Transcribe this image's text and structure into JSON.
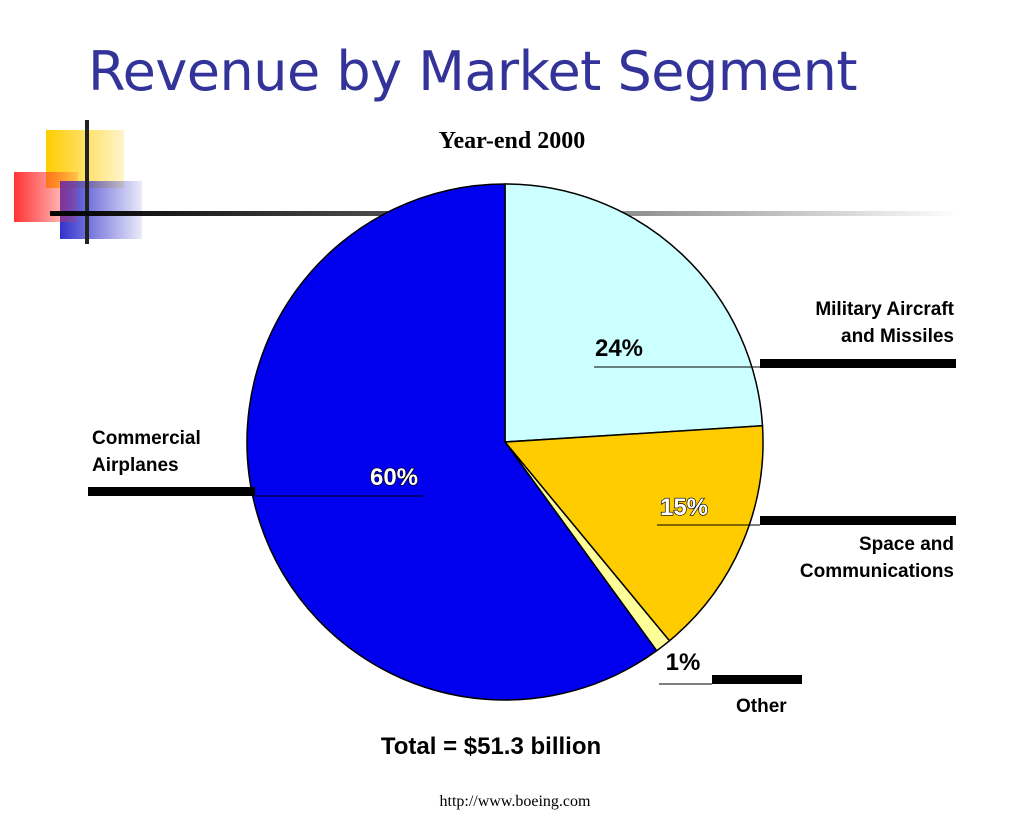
{
  "slide": {
    "title": "Revenue by Market Segment",
    "footer_url": "http://www.boeing.com"
  },
  "colors": {
    "title": "#333399",
    "commercial": "#0000ee",
    "military": "#ccffff",
    "space": "#ffcc00",
    "other": "#ffff99"
  },
  "chart_data": {
    "type": "pie",
    "title": "Year-end 2000",
    "total_label": "Total = $51.3 billion",
    "start_angle_deg": 0,
    "direction": "clockwise",
    "slices": [
      {
        "label": "Military Aircraft\nand Missiles",
        "value": 24,
        "value_label": "24%",
        "color": "#ccffff"
      },
      {
        "label": "Space and\nCommunications",
        "value": 15,
        "value_label": "15%",
        "color": "#ffcc00"
      },
      {
        "label": "Other",
        "value": 1,
        "value_label": "1%",
        "color": "#ffff99"
      },
      {
        "label": "Commercial\nAirplanes",
        "value": 60,
        "value_label": "60%",
        "color": "#0000ee"
      }
    ]
  }
}
